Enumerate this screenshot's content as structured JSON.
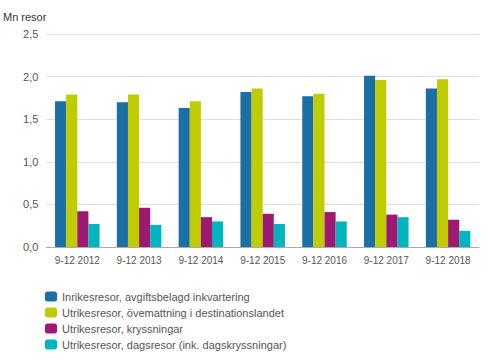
{
  "chart_data": {
    "type": "bar",
    "ylabel": "Mn resor",
    "categories": [
      "9-12 2012",
      "9-12 2013",
      "9-12 2014",
      "9-12 2015",
      "9-12 2016",
      "9-12 2017",
      "9-12 2018"
    ],
    "series": [
      {
        "name": "Inrikesresor, avgiftsbelagd inkvartering",
        "color": "#1a6fa5",
        "values": [
          1.71,
          1.7,
          1.63,
          1.82,
          1.77,
          2.01,
          1.86
        ]
      },
      {
        "name": "Utrikesresor, övemattning i destinationslandet",
        "color": "#c0cc00",
        "values": [
          1.79,
          1.79,
          1.71,
          1.86,
          1.8,
          1.96,
          1.97
        ]
      },
      {
        "name": "Utrikesresor, kryssningar",
        "color": "#9e1a72",
        "values": [
          0.42,
          0.46,
          0.35,
          0.39,
          0.41,
          0.38,
          0.32
        ]
      },
      {
        "name": "Utrikesresor, dagsresor (ink. dagskryssningar)",
        "color": "#00b5be",
        "values": [
          0.27,
          0.26,
          0.3,
          0.27,
          0.3,
          0.35,
          0.19
        ]
      }
    ],
    "ylim": [
      0.0,
      2.5
    ],
    "yticks": [
      {
        "value": 0.0,
        "label": "0,0"
      },
      {
        "value": 0.5,
        "label": "0,5"
      },
      {
        "value": 1.0,
        "label": "1,0"
      },
      {
        "value": 1.5,
        "label": "1,5"
      },
      {
        "value": 2.0,
        "label": "2,0"
      },
      {
        "value": 2.5,
        "label": "2,5"
      }
    ],
    "grid": true,
    "legend": "bottom"
  }
}
